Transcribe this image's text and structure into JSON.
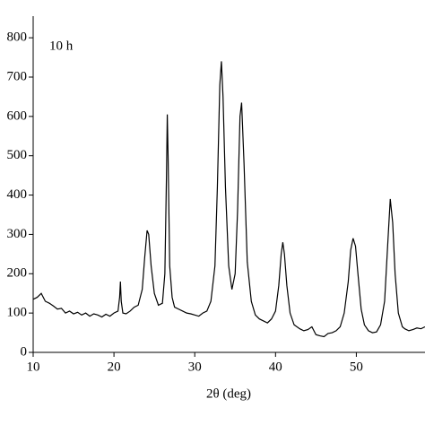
{
  "chart_data": {
    "type": "line",
    "annotation": "10 h",
    "x_label": "2θ (deg)",
    "x": [
      10,
      10.5,
      11,
      11.5,
      12,
      12.5,
      13,
      13.5,
      14,
      14.5,
      15,
      15.5,
      16,
      16.5,
      17,
      17.5,
      18,
      18.5,
      19,
      19.5,
      20,
      20.5,
      20.7,
      20.8,
      20.9,
      21.1,
      21.5,
      22,
      22.5,
      23,
      23.5,
      23.8,
      24.1,
      24.3,
      24.6,
      25,
      25.5,
      26,
      26.3,
      26.5,
      26.6,
      26.7,
      26.9,
      27.2,
      27.5,
      28,
      28.5,
      29,
      29.5,
      30,
      30.5,
      31,
      31.5,
      32,
      32.5,
      32.8,
      33.1,
      33.3,
      33.5,
      33.8,
      34.2,
      34.6,
      35,
      35.3,
      35.6,
      35.8,
      36.1,
      36.5,
      37,
      37.5,
      38,
      38.5,
      39,
      39.5,
      40,
      40.4,
      40.7,
      40.9,
      41.1,
      41.4,
      41.8,
      42.3,
      43,
      43.5,
      44,
      44.5,
      45,
      45.5,
      46,
      46.5,
      47,
      47.5,
      48,
      48.5,
      49,
      49.3,
      49.6,
      49.9,
      50.2,
      50.6,
      51,
      51.5,
      52,
      52.5,
      53,
      53.5,
      53.9,
      54.2,
      54.5,
      54.8,
      55.2,
      55.7,
      56,
      56.5,
      57,
      57.5,
      58,
      58.5
    ],
    "series": [
      {
        "color": "#000000",
        "values": [
          135,
          140,
          150,
          130,
          125,
          118,
          110,
          112,
          100,
          105,
          98,
          102,
          95,
          100,
          92,
          98,
          95,
          90,
          97,
          92,
          100,
          105,
          140,
          180,
          130,
          100,
          98,
          105,
          115,
          120,
          160,
          240,
          310,
          300,
          220,
          150,
          120,
          125,
          200,
          450,
          605,
          500,
          220,
          140,
          115,
          110,
          105,
          100,
          98,
          95,
          92,
          100,
          105,
          130,
          220,
          420,
          680,
          740,
          650,
          420,
          220,
          160,
          200,
          360,
          600,
          635,
          480,
          230,
          130,
          95,
          85,
          80,
          75,
          85,
          105,
          170,
          250,
          280,
          250,
          170,
          100,
          70,
          60,
          55,
          58,
          65,
          45,
          42,
          40,
          48,
          50,
          55,
          65,
          100,
          180,
          260,
          290,
          270,
          200,
          110,
          70,
          55,
          50,
          52,
          70,
          130,
          280,
          390,
          330,
          200,
          100,
          65,
          60,
          55,
          58,
          62,
          60,
          65
        ]
      }
    ],
    "xlim": [
      10,
      58.5
    ],
    "xticks": [
      10,
      20,
      30,
      40,
      50
    ],
    "ylim": [
      0,
      855
    ],
    "yticks": [
      0,
      100,
      200,
      300,
      400,
      500,
      600,
      700,
      800
    ]
  }
}
